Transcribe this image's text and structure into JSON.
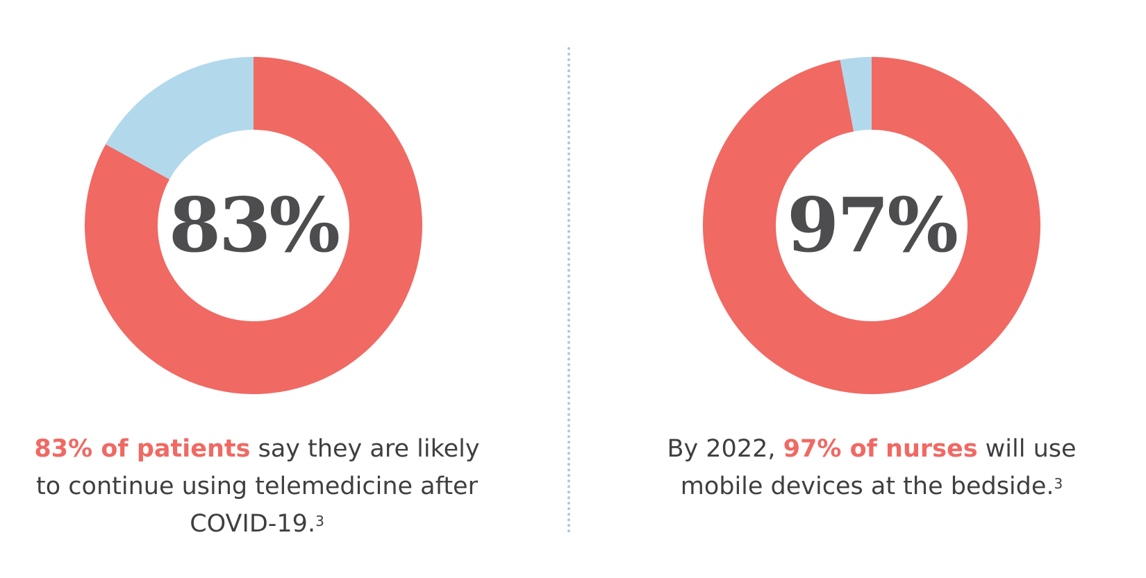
{
  "colors": {
    "primary": "#f06963",
    "secondary": "#b2d8ec",
    "center_text": "#4d4d4f",
    "body_text": "#3f3f41",
    "divider": "#a7c9e1"
  },
  "chart_data": [
    {
      "type": "pie",
      "title": "83%",
      "slices": [
        {
          "label": "",
          "value": 83,
          "color": "#f06963"
        },
        {
          "label": "",
          "value": 17,
          "color": "#b2d8ec"
        }
      ],
      "caption": {
        "highlight": "83% of patients",
        "text_after": " say they are likely to continue using telemedicine after COVID-19.",
        "footnote": "3"
      }
    },
    {
      "type": "pie",
      "title": "97%",
      "slices": [
        {
          "label": "",
          "value": 97,
          "color": "#f06963"
        },
        {
          "label": "",
          "value": 3,
          "color": "#b2d8ec"
        }
      ],
      "caption": {
        "text_before": "By 2022, ",
        "highlight": "97% of nurses",
        "text_after": " will use mobile devices at the bedside.",
        "footnote": "3"
      }
    }
  ]
}
